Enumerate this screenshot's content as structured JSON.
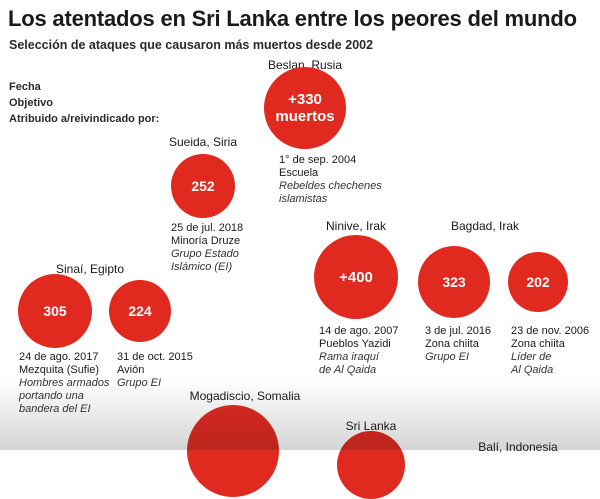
{
  "header": {
    "title": "Los atentados en Sri Lanka entre los peores del mundo",
    "subtitle": "Selección de ataques que causaron más muertos desde 2002"
  },
  "legend": {
    "date": "Fecha",
    "target": "Objetivo",
    "attributed": "Atribuido a/reivindicado por:"
  },
  "colors": {
    "circle": "#e0291f"
  },
  "chart_data": {
    "type": "bubble",
    "title": "Los atentados en Sri Lanka entre los peores del mundo",
    "subtitle": "Selección de ataques que causaron más muertos desde 2002",
    "unit": "muertos",
    "events": [
      {
        "id": "beslan",
        "place": "Beslan, Rusia",
        "deaths": 330,
        "label": "+330",
        "label2": "muertos",
        "date": "1° de sep. 2004",
        "target": "Escuela",
        "group": [
          "Rebeldes chechenes",
          "islamistas"
        ]
      },
      {
        "id": "sueida",
        "place": "Sueida, Siria",
        "deaths": 252,
        "label": "252",
        "date": "25 de jul. 2018",
        "target": "Minoría Druze",
        "group": [
          "Grupo Estado",
          "Islámico (EI)"
        ]
      },
      {
        "id": "ninive",
        "place": "Ninive, Irak",
        "deaths": 400,
        "label": "+400",
        "date": "14 de ago. 2007",
        "target": "Pueblos Yazidi",
        "group": [
          "Rama iraquí",
          "de Al Qaida"
        ]
      },
      {
        "id": "bagdad1",
        "place": "Bagdad, Irak",
        "deaths": 323,
        "label": "323",
        "date": "3 de jul. 2016",
        "target": "Zona chiita",
        "group": [
          "Grupo EI"
        ]
      },
      {
        "id": "bagdad2",
        "place": "",
        "deaths": 202,
        "label": "202",
        "date": "23 de nov. 2006",
        "target": "Zona chiita",
        "group": [
          "Líder de",
          "Al Qaida"
        ]
      },
      {
        "id": "sinai1",
        "place": "Sinaí, Egipto",
        "deaths": 305,
        "label": "305",
        "date": "24 de ago. 2017",
        "target": "Mezquita (Sufie)",
        "group": [
          "Hombres armados",
          "portando una",
          "bandera del EI"
        ]
      },
      {
        "id": "sinai2",
        "place": "",
        "deaths": 224,
        "label": "224",
        "date": "31 de oct. 2015",
        "target": "Avión",
        "group": [
          "Grupo EI"
        ]
      },
      {
        "id": "mogadiscio",
        "place": "Mogadiscio, Somalia"
      },
      {
        "id": "srilanka",
        "place": "Sri Lanka"
      },
      {
        "id": "bali",
        "place": "Balí, Indonesia"
      }
    ]
  }
}
